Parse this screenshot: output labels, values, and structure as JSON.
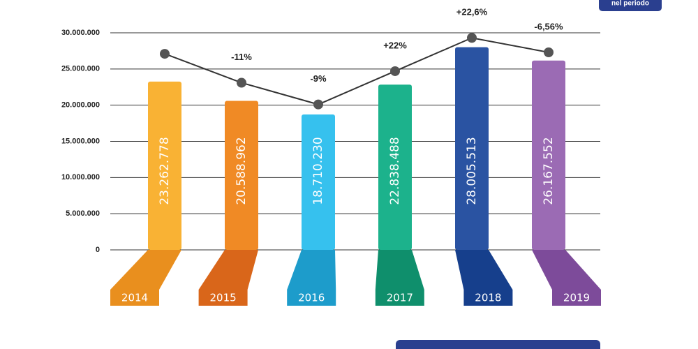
{
  "chart_data": {
    "type": "bar",
    "badge": "nel periodo",
    "categories": [
      "2014",
      "2015",
      "2016",
      "2017",
      "2018",
      "2019"
    ],
    "values": [
      23262778,
      20588962,
      18710230,
      22838488,
      28005513,
      26167552
    ],
    "value_labels": [
      "23.262.778",
      "20.588.962",
      "18.710.230",
      "22.838.488",
      "28.005.513",
      "26.167.552"
    ],
    "colors": [
      "#f9b234",
      "#f08a25",
      "#36c1ee",
      "#1cb28c",
      "#2a53a2",
      "#9b6bb4"
    ],
    "base_colors": [
      "#e98f1e",
      "#d9661a",
      "#1d9ccb",
      "#0f8f6c",
      "#163f8c",
      "#7d4b9a"
    ],
    "trend_values": [
      27100000,
      23100000,
      20100000,
      24700000,
      29300000,
      27300000
    ],
    "change_labels": [
      null,
      "-11%",
      "-9%",
      "+22%",
      "+22,6%",
      "-6,56%"
    ],
    "ylim": [
      0,
      30000000
    ],
    "yticks": [
      0,
      {
        "value": 5000000,
        "label": "5.000.000"
      },
      {
        "value": 10000000,
        "label": "10.000.000"
      },
      {
        "value": 15000000,
        "label": "15.000.000"
      },
      {
        "value": 20000000,
        "label": "20.000.000"
      },
      {
        "value": 25000000,
        "label": "25.000.000"
      },
      {
        "value": 30000000,
        "label": "30.000.000"
      }
    ],
    "grid": true
  }
}
